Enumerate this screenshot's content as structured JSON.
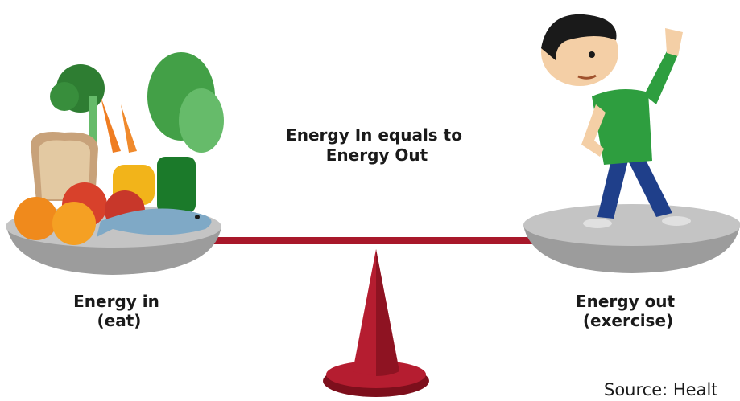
{
  "title": {
    "lines": [
      "Energy In equals to",
      "Energy Out"
    ]
  },
  "left_label": {
    "lines": [
      "Energy in",
      "(eat)"
    ]
  },
  "right_label": {
    "lines": [
      "Energy out",
      "(exercise)"
    ]
  },
  "source": "Source: Healt"
}
